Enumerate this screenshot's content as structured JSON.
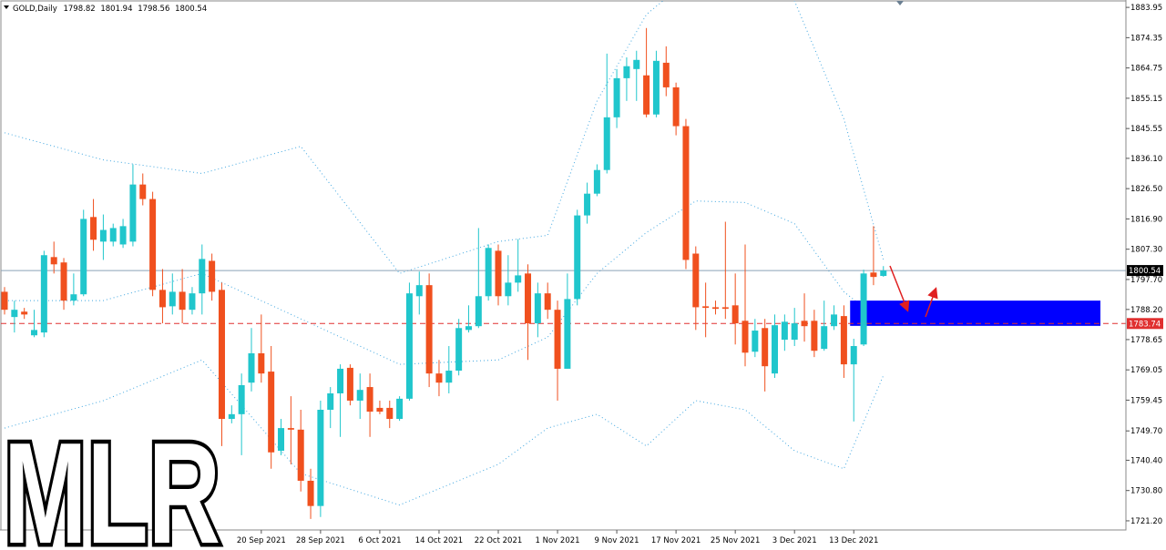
{
  "chart_data": {
    "type": "candlestick",
    "symbol": "GOLD,Daily",
    "watermark": "MLR",
    "categories": [
      null,
      null,
      null,
      null,
      null,
      null,
      null,
      null,
      null,
      null,
      null,
      null,
      null,
      null,
      null,
      null,
      null,
      null,
      null,
      null,
      null,
      null,
      null,
      null,
      null,
      null,
      "20 Sep 2021",
      null,
      null,
      null,
      null,
      null,
      "28 Sep 2021",
      null,
      null,
      null,
      null,
      null,
      "6 Oct 2021",
      null,
      null,
      null,
      null,
      null,
      "14 Oct 2021",
      null,
      null,
      null,
      null,
      null,
      "22 Oct 2021",
      null,
      null,
      null,
      null,
      null,
      "1 Nov 2021",
      null,
      null,
      null,
      null,
      null,
      "9 Nov 2021",
      null,
      null,
      null,
      null,
      null,
      "17 Nov 2021",
      null,
      null,
      null,
      null,
      null,
      "25 Nov 2021",
      null,
      null,
      null,
      null,
      null,
      "3 Dec 2021",
      null,
      null,
      null,
      null,
      null,
      "13 Dec 2021",
      null,
      null,
      null
    ],
    "open": [
      1793.8,
      1785.8,
      1787.5,
      1780.0,
      1780.9,
      1804.8,
      1803.1,
      1791.0,
      1793.0,
      1817.5,
      1809.7,
      1809.7,
      1808.8,
      1809.7,
      1827.8,
      1823.2,
      1794.4,
      1789.2,
      1793.8,
      1788.1,
      1793.3,
      1803.6,
      1794.4,
      1753.5,
      1755.0,
      1765.0,
      1774.3,
      1768.5,
      1743.4,
      1750.6,
      1750.1,
      1733.9,
      1725.9,
      1756.4,
      1761.6,
      1769.7,
      1759.3,
      1763.6,
      1757.0,
      1757.0,
      1753.5,
      1759.9,
      1792.4,
      1795.9,
      1767.9,
      1765.0,
      1768.8,
      1781.7,
      1782.9,
      1792.4,
      1806.8,
      1792.4,
      1796.7,
      1799.6,
      1783.8,
      1793.3,
      1788.1,
      1769.4,
      1791.5,
      1818.0,
      1824.9,
      1832.4,
      1849.1,
      1861.5,
      1864.4,
      1862.4,
      1850.0,
      1866.4,
      1858.6,
      1846.3,
      1805.9,
      1789.2,
      1788.9,
      1788.9,
      1789.5,
      1784.6,
      1774.8,
      1782.3,
      1767.9,
      1778.6,
      1778.6,
      1784.6,
      1784.6,
      1775.7,
      1782.9,
      1786.1,
      1770.8,
      1777.1,
      1799.9,
      1798.82
    ],
    "high": [
      1795.3,
      1791.0,
      1788.7,
      1788.1,
      1806.8,
      1809.7,
      1804.5,
      1799.6,
      1819.8,
      1823.2,
      1818.3,
      1815.4,
      1816.9,
      1834.2,
      1831.3,
      1825.5,
      1801.0,
      1799.6,
      1801.0,
      1795.3,
      1808.8,
      1805.9,
      1796.7,
      1757.8,
      1767.9,
      1782.3,
      1786.6,
      1776.6,
      1753.5,
      1760.7,
      1756.4,
      1737.7,
      1759.3,
      1763.6,
      1770.8,
      1770.8,
      1767.9,
      1767.9,
      1759.3,
      1759.3,
      1760.7,
      1796.7,
      1800.2,
      1799.6,
      1772.2,
      1776.6,
      1785.2,
      1789.5,
      1814.0,
      1808.8,
      1808.8,
      1805.4,
      1810.5,
      1802.5,
      1796.7,
      1796.7,
      1791.0,
      1799.6,
      1819.8,
      1828.4,
      1834.2,
      1869.3,
      1864.4,
      1868.1,
      1870.2,
      1877.4,
      1870.2,
      1871.6,
      1860.1,
      1848.6,
      1808.2,
      1796.7,
      1791.0,
      1816.0,
      1799.6,
      1808.8,
      1785.2,
      1785.2,
      1786.6,
      1786.6,
      1788.7,
      1793.3,
      1788.1,
      1791.0,
      1789.5,
      1789.5,
      1778.9,
      1800.8,
      1814.6,
      1801.94
    ],
    "low": [
      1786.6,
      1780.9,
      1785.2,
      1779.4,
      1779.4,
      1799.6,
      1788.1,
      1789.5,
      1792.4,
      1806.8,
      1803.9,
      1808.2,
      1807.7,
      1808.2,
      1821.2,
      1792.4,
      1783.8,
      1786.6,
      1783.8,
      1786.6,
      1786.6,
      1791.0,
      1744.9,
      1752.1,
      1742.0,
      1762.2,
      1765.0,
      1737.7,
      1742.0,
      1739.1,
      1730.5,
      1721.8,
      1722.4,
      1750.6,
      1747.8,
      1757.8,
      1753.5,
      1747.8,
      1755.0,
      1750.6,
      1752.9,
      1759.3,
      1786.6,
      1763.6,
      1760.7,
      1761.6,
      1767.3,
      1780.9,
      1782.3,
      1791.0,
      1789.5,
      1789.5,
      1793.8,
      1772.2,
      1779.4,
      1785.2,
      1759.3,
      1769.4,
      1789.5,
      1815.4,
      1824.1,
      1831.3,
      1845.7,
      1854.3,
      1854.3,
      1849.1,
      1849.1,
      1855.8,
      1843.4,
      1801.0,
      1781.7,
      1779.4,
      1786.6,
      1785.2,
      1777.1,
      1770.2,
      1773.1,
      1762.2,
      1766.5,
      1775.1,
      1776.6,
      1778.0,
      1773.1,
      1775.1,
      1781.7,
      1766.5,
      1752.7,
      1776.6,
      1795.9,
      1798.56
    ],
    "close": [
      1788.1,
      1788.1,
      1786.6,
      1781.7,
      1805.4,
      1802.5,
      1791.0,
      1793.0,
      1816.9,
      1810.3,
      1813.4,
      1814.0,
      1814.6,
      1827.8,
      1823.2,
      1794.4,
      1788.9,
      1793.8,
      1788.1,
      1793.3,
      1804.2,
      1793.8,
      1753.5,
      1755.0,
      1764.2,
      1774.3,
      1767.9,
      1742.9,
      1750.6,
      1750.1,
      1733.9,
      1725.9,
      1756.4,
      1761.6,
      1769.4,
      1759.3,
      1762.7,
      1755.8,
      1755.8,
      1753.5,
      1759.9,
      1793.3,
      1795.9,
      1767.9,
      1765.0,
      1768.8,
      1782.3,
      1782.9,
      1792.4,
      1807.7,
      1792.4,
      1796.7,
      1799.0,
      1783.8,
      1793.3,
      1788.1,
      1769.4,
      1791.5,
      1818.0,
      1824.9,
      1832.4,
      1849.1,
      1861.5,
      1865.3,
      1867.3,
      1850.0,
      1867.0,
      1858.6,
      1846.3,
      1803.9,
      1788.9,
      1788.7,
      1788.4,
      1788.4,
      1783.8,
      1774.5,
      1781.5,
      1770.2,
      1783.2,
      1784.3,
      1783.8,
      1782.9,
      1775.1,
      1782.9,
      1786.6,
      1770.8,
      1776.6,
      1799.6,
      1798.5,
      1800.54
    ],
    "up_color": "#20c6cc",
    "down_color": "#f0501e",
    "ylim": [
      1718.3,
      1886.0
    ],
    "yticks": [
      1883.95,
      1874.35,
      1864.75,
      1855.15,
      1845.55,
      {
        "value": 1836.1,
        "label": "1836.10"
      },
      {
        "value": 1826.5,
        "label": "1826.50"
      },
      {
        "value": 1816.9,
        "label": "1816.90"
      },
      {
        "value": 1807.3,
        "label": "1807.30"
      },
      {
        "value": 1797.7,
        "label": "1797.70"
      },
      {
        "value": 1788.2,
        "label": "1788.20"
      },
      1778.65,
      1769.05,
      1759.45,
      {
        "value": 1749.7,
        "label": "1749.70"
      },
      {
        "value": 1740.4,
        "label": "1740.40"
      },
      {
        "value": 1730.8,
        "label": "1730.80"
      },
      {
        "value": 1721.2,
        "label": "1721.20"
      }
    ],
    "grid": false,
    "bands": {
      "color": "#3fa6e0",
      "x": [
        0,
        10,
        20,
        30,
        40,
        50,
        55,
        60,
        65,
        70,
        75,
        80,
        85,
        89
      ],
      "upper": [
        1844.2,
        1835.6,
        1831.3,
        1839.9,
        1799.6,
        1809.7,
        1811.7,
        1854.3,
        1881.7,
        1894.6,
        1894.6,
        1886.0,
        1848.6,
        1803.9
      ],
      "middle": [
        1791.0,
        1791.0,
        1799.6,
        1785.2,
        1770.8,
        1772.2,
        1779.4,
        1799.6,
        1812.6,
        1822.6,
        1822.1,
        1815.4,
        1793.8,
        1783.8
      ],
      "lower": [
        1750.6,
        1759.3,
        1772.2,
        1736.2,
        1726.2,
        1739.1,
        1750.6,
        1755.0,
        1744.9,
        1759.3,
        1756.4,
        1743.4,
        1737.7,
        1767.3
      ]
    },
    "price_line_color": "#8aa2b6",
    "level": 1783.74,
    "level_color": "#e03030",
    "zone": {
      "top": 1791.0,
      "bottom": 1783.0,
      "color": "#0000ff"
    }
  }
}
